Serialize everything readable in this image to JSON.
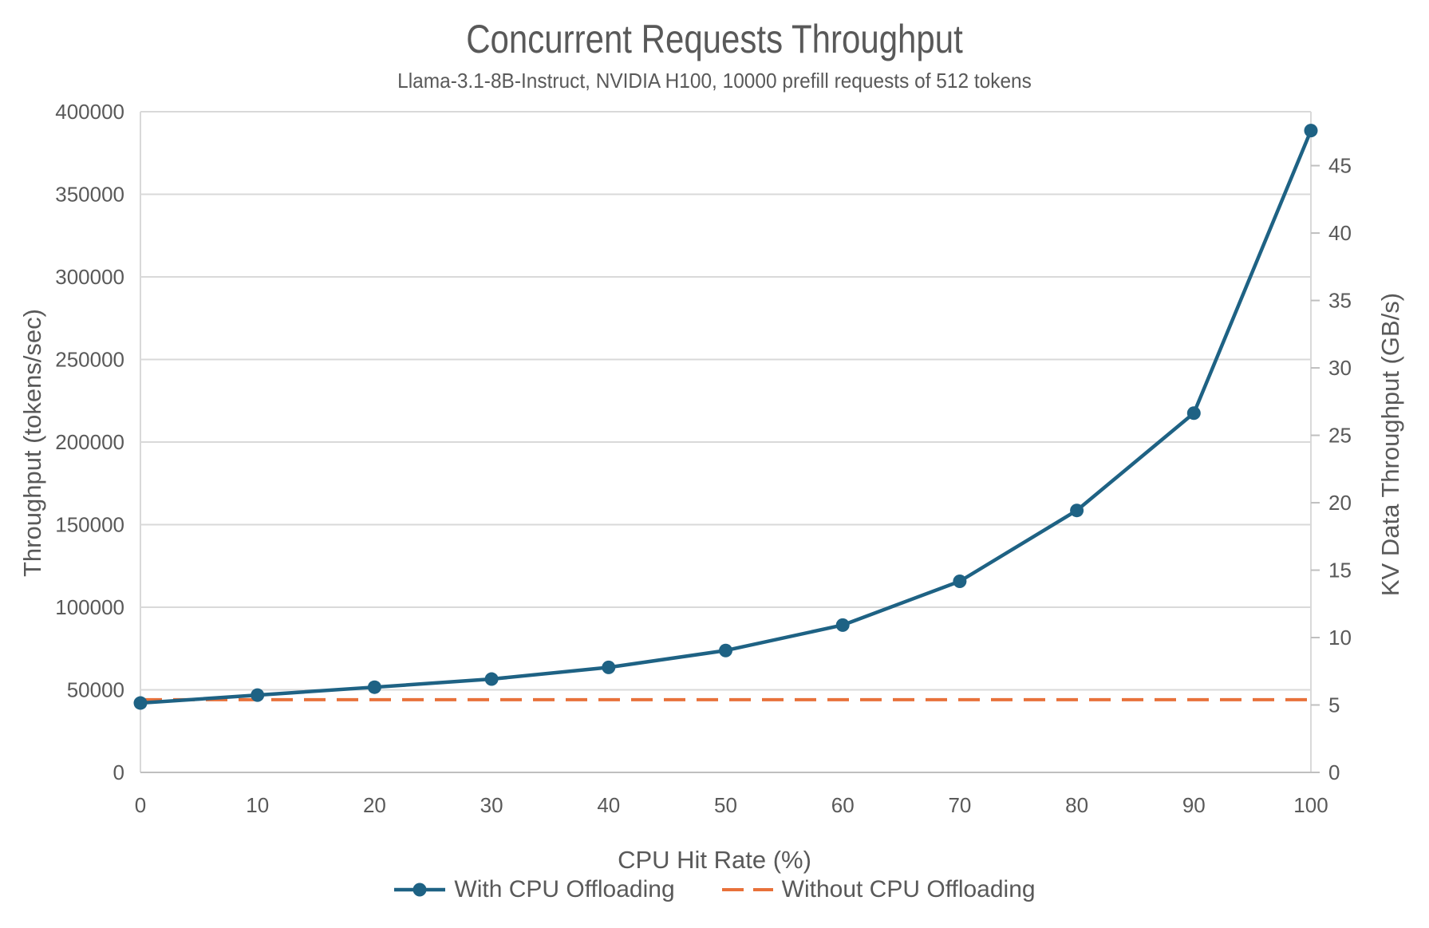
{
  "chart_data": {
    "type": "line",
    "title": "Concurrent Requests Throughput",
    "subtitle": "Llama-3.1-8B-Instruct, NVIDIA H100, 10000 prefill requests of 512 tokens",
    "x_axis": {
      "label": "CPU Hit Rate (%)",
      "min": 0,
      "max": 100,
      "step": 10,
      "tick_labels": [
        "0",
        "10",
        "20",
        "30",
        "40",
        "50",
        "60",
        "70",
        "80",
        "90",
        "100"
      ]
    },
    "left_axis": {
      "label": "Throughput (tokens/sec)",
      "min": 0,
      "max": 400000,
      "step": 50000,
      "tick_labels": [
        "0",
        "50000",
        "100000",
        "150000",
        "200000",
        "250000",
        "300000",
        "350000",
        "400000"
      ]
    },
    "right_axis": {
      "label": "KV Data Throughput (GB/s)",
      "min": 0,
      "max": 49,
      "step": 5,
      "tick_labels": [
        "0",
        "5",
        "10",
        "15",
        "20",
        "25",
        "30",
        "35",
        "40",
        "45"
      ]
    },
    "series": [
      {
        "name": "With CPU Offloading",
        "axis": "left",
        "color": "#1E6284",
        "line_style": "solid",
        "marker": "circle",
        "values": [
          42000,
          46800,
          51600,
          56500,
          63600,
          73800,
          89200,
          115700,
          158600,
          217500,
          388600
        ]
      },
      {
        "name": "Without CPU Offloading",
        "axis": "left",
        "color": "#E8713A",
        "line_style": "dashed",
        "marker": "none",
        "values": [
          44000,
          44000,
          44000,
          44000,
          44000,
          44000,
          44000,
          44000,
          44000,
          44000,
          44000
        ]
      }
    ],
    "grid": {
      "horizontal": true,
      "vertical": false,
      "color": "#D9D9D9"
    },
    "colors": {
      "axis_line": "#BFBFBF",
      "frame_line": "#D9D9D9",
      "text": "#595959"
    },
    "legend": {
      "position": "bottom"
    }
  }
}
